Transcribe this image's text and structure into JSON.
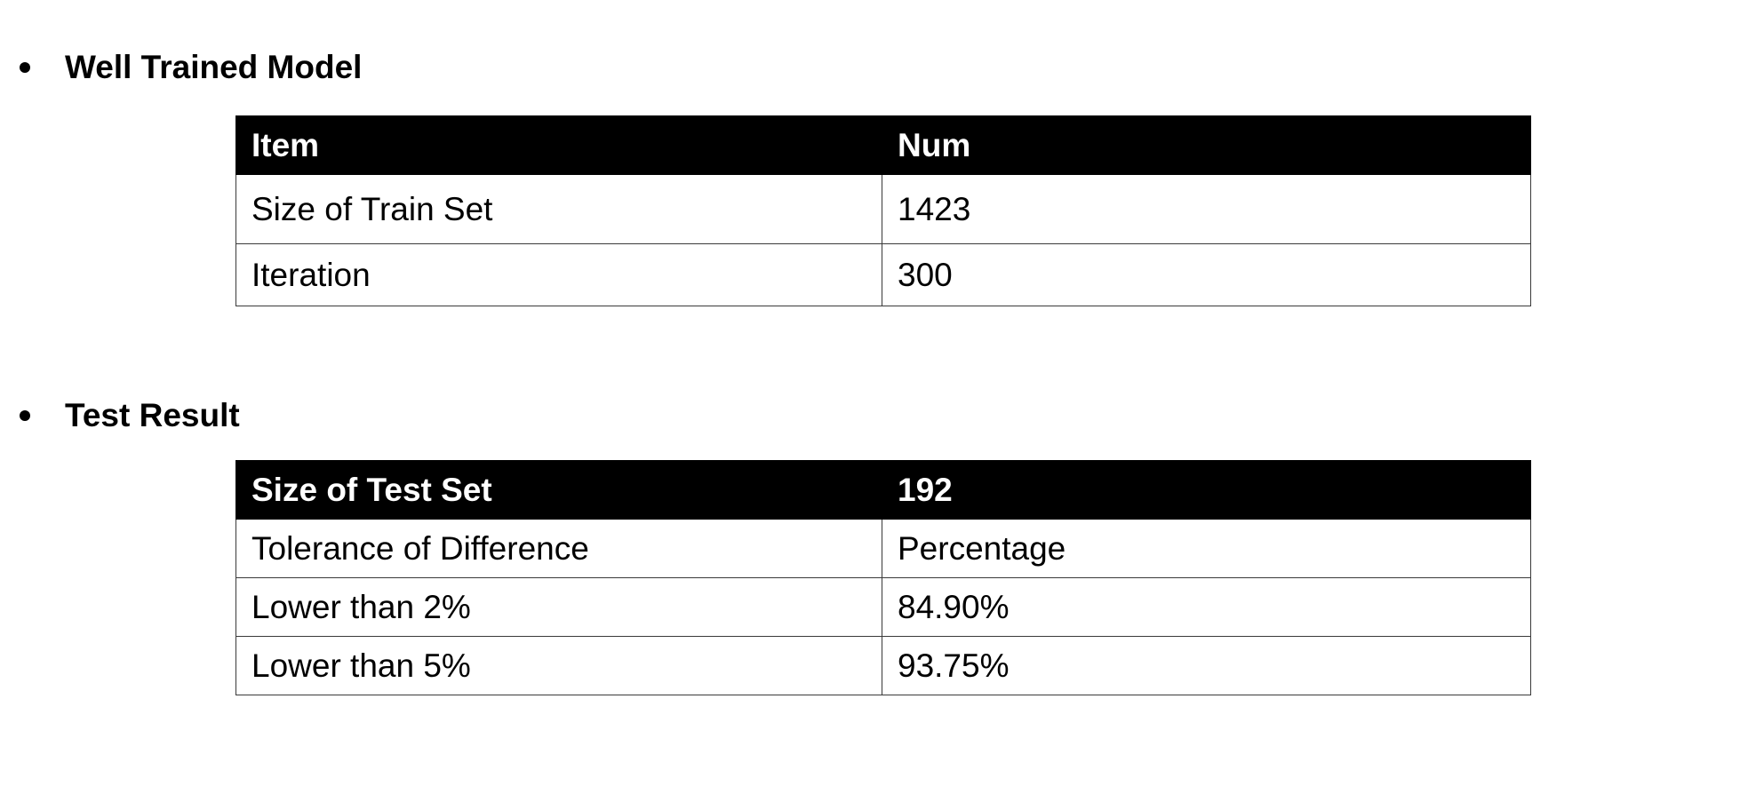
{
  "sections": [
    {
      "heading": "Well Trained Model",
      "table": {
        "columns": [
          "Item",
          "Num"
        ],
        "rows": [
          [
            "Size of Train Set",
            "1423"
          ],
          [
            "Iteration",
            "300"
          ]
        ]
      }
    },
    {
      "heading": "Test Result",
      "table": {
        "columns": [
          "Size of Test Set",
          "192"
        ],
        "rows": [
          [
            "Tolerance of Difference",
            "Percentage"
          ],
          [
            "Lower than 2%",
            "84.90%"
          ],
          [
            "Lower than 5%",
            "93.75%"
          ]
        ]
      }
    }
  ]
}
